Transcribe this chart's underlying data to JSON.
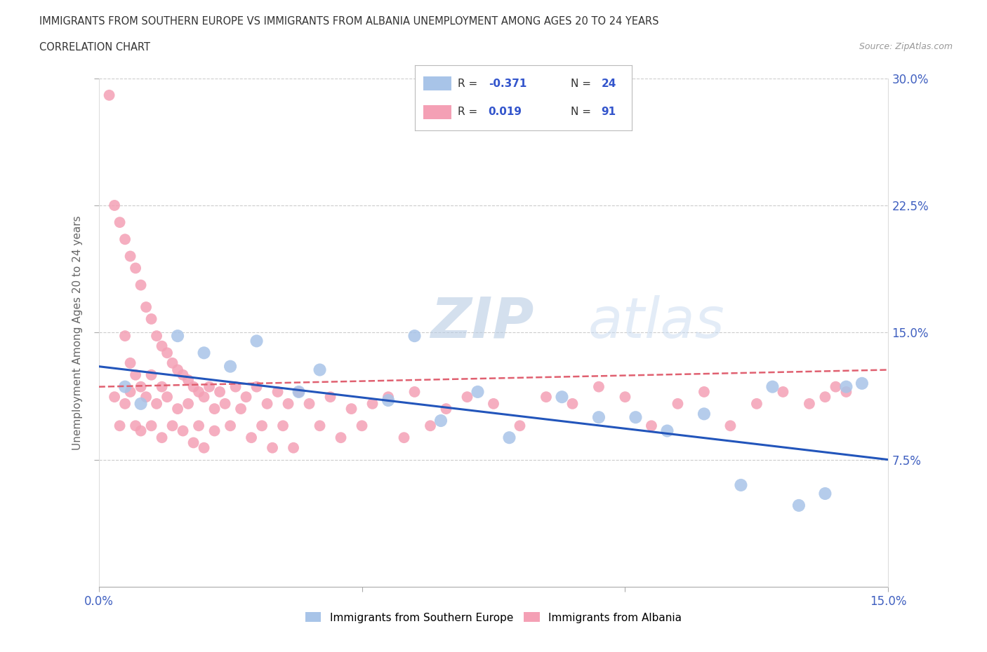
{
  "title_line1": "IMMIGRANTS FROM SOUTHERN EUROPE VS IMMIGRANTS FROM ALBANIA UNEMPLOYMENT AMONG AGES 20 TO 24 YEARS",
  "title_line2": "CORRELATION CHART",
  "source": "Source: ZipAtlas.com",
  "ylabel": "Unemployment Among Ages 20 to 24 years",
  "xlabel_blue": "Immigrants from Southern Europe",
  "xlabel_pink": "Immigrants from Albania",
  "xlim": [
    0,
    0.15
  ],
  "ylim": [
    0,
    0.3
  ],
  "yticks_right": [
    0.075,
    0.15,
    0.225,
    0.3
  ],
  "ytick_labels_right": [
    "7.5%",
    "15.0%",
    "22.5%",
    "30.0%"
  ],
  "yticks_grid": [
    0.075,
    0.15,
    0.225,
    0.3
  ],
  "xtick_left": 0.0,
  "xtick_right": 0.15,
  "xtick_label_left": "0.0%",
  "xtick_label_right": "15.0%",
  "blue_color": "#a8c4e8",
  "pink_color": "#f4a0b5",
  "blue_line_color": "#2255bb",
  "pink_line_color": "#e06070",
  "watermark_zip": "ZIP",
  "watermark_atlas": "atlas",
  "legend_R_blue": "-0.371",
  "legend_N_blue": "24",
  "legend_R_pink": "0.019",
  "legend_N_pink": "91",
  "blue_scatter_x": [
    0.005,
    0.008,
    0.015,
    0.02,
    0.025,
    0.03,
    0.038,
    0.042,
    0.055,
    0.06,
    0.065,
    0.072,
    0.078,
    0.088,
    0.095,
    0.102,
    0.108,
    0.115,
    0.122,
    0.128,
    0.133,
    0.138,
    0.142,
    0.145
  ],
  "blue_scatter_y": [
    0.118,
    0.108,
    0.148,
    0.138,
    0.13,
    0.145,
    0.115,
    0.128,
    0.11,
    0.148,
    0.098,
    0.115,
    0.088,
    0.112,
    0.1,
    0.1,
    0.092,
    0.102,
    0.06,
    0.118,
    0.048,
    0.055,
    0.118,
    0.12
  ],
  "pink_scatter_x": [
    0.002,
    0.003,
    0.003,
    0.004,
    0.004,
    0.005,
    0.005,
    0.005,
    0.006,
    0.006,
    0.006,
    0.007,
    0.007,
    0.007,
    0.008,
    0.008,
    0.008,
    0.009,
    0.009,
    0.01,
    0.01,
    0.01,
    0.011,
    0.011,
    0.012,
    0.012,
    0.012,
    0.013,
    0.013,
    0.014,
    0.014,
    0.015,
    0.015,
    0.016,
    0.016,
    0.017,
    0.017,
    0.018,
    0.018,
    0.019,
    0.019,
    0.02,
    0.02,
    0.021,
    0.022,
    0.022,
    0.023,
    0.024,
    0.025,
    0.026,
    0.027,
    0.028,
    0.029,
    0.03,
    0.031,
    0.032,
    0.033,
    0.034,
    0.035,
    0.036,
    0.037,
    0.038,
    0.04,
    0.042,
    0.044,
    0.046,
    0.048,
    0.05,
    0.052,
    0.055,
    0.058,
    0.06,
    0.063,
    0.066,
    0.07,
    0.075,
    0.08,
    0.085,
    0.09,
    0.095,
    0.1,
    0.105,
    0.11,
    0.115,
    0.12,
    0.125,
    0.13,
    0.135,
    0.138,
    0.14,
    0.142
  ],
  "pink_scatter_y": [
    0.29,
    0.225,
    0.112,
    0.215,
    0.095,
    0.205,
    0.148,
    0.108,
    0.195,
    0.132,
    0.115,
    0.188,
    0.125,
    0.095,
    0.178,
    0.118,
    0.092,
    0.165,
    0.112,
    0.158,
    0.125,
    0.095,
    0.148,
    0.108,
    0.142,
    0.118,
    0.088,
    0.138,
    0.112,
    0.132,
    0.095,
    0.128,
    0.105,
    0.125,
    0.092,
    0.122,
    0.108,
    0.118,
    0.085,
    0.115,
    0.095,
    0.112,
    0.082,
    0.118,
    0.105,
    0.092,
    0.115,
    0.108,
    0.095,
    0.118,
    0.105,
    0.112,
    0.088,
    0.118,
    0.095,
    0.108,
    0.082,
    0.115,
    0.095,
    0.108,
    0.082,
    0.115,
    0.108,
    0.095,
    0.112,
    0.088,
    0.105,
    0.095,
    0.108,
    0.112,
    0.088,
    0.115,
    0.095,
    0.105,
    0.112,
    0.108,
    0.095,
    0.112,
    0.108,
    0.118,
    0.112,
    0.095,
    0.108,
    0.115,
    0.095,
    0.108,
    0.115,
    0.108,
    0.112,
    0.118,
    0.115
  ],
  "blue_trend_x0": 0.0,
  "blue_trend_y0": 0.13,
  "blue_trend_x1": 0.15,
  "blue_trend_y1": 0.075,
  "pink_trend_x0": 0.0,
  "pink_trend_y0": 0.118,
  "pink_trend_x1": 0.15,
  "pink_trend_y1": 0.128
}
